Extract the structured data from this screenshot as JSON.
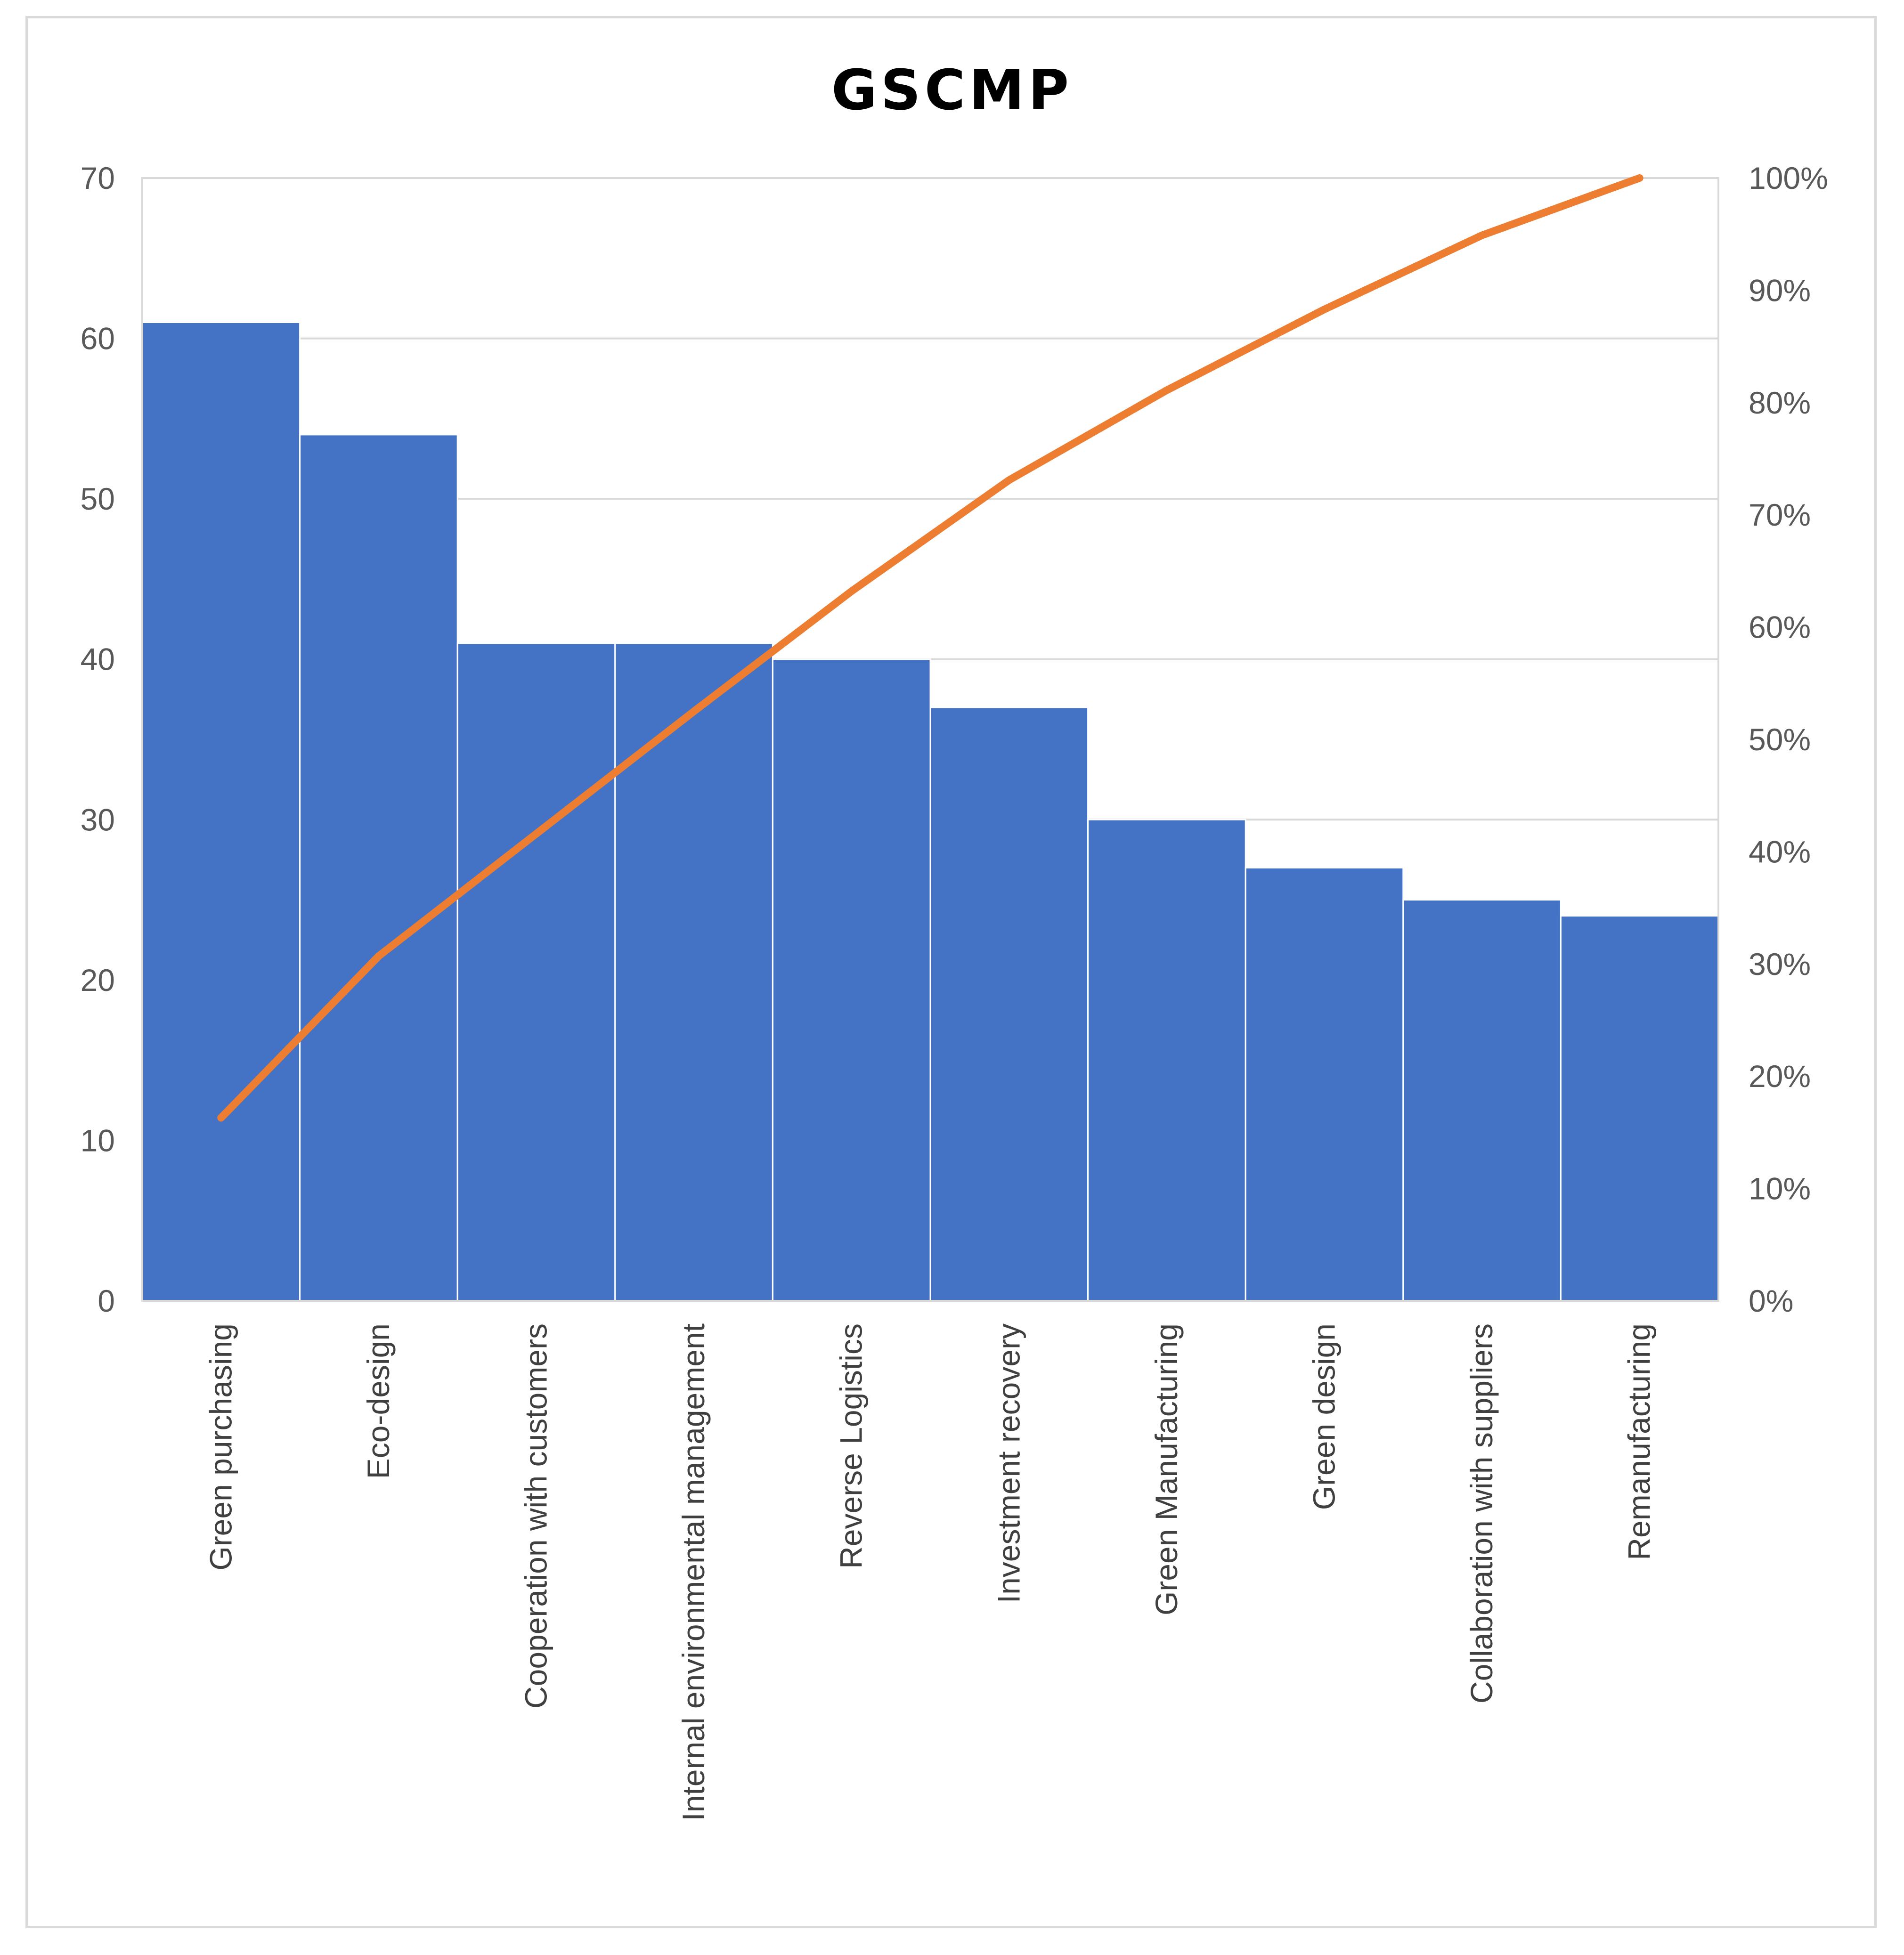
{
  "chart_data": {
    "type": "bar",
    "title": "GSCMP",
    "categories": [
      "Green purchasing",
      "Eco-design",
      "Cooperation with customers",
      "Internal environmental management",
      "Reverse Logistics",
      "Investment recovery",
      "Green Manufacturing",
      "Green design",
      "Collaboration with suppliers",
      "Remanufacturing"
    ],
    "series": [
      {
        "type": "bar",
        "values": [
          61,
          54,
          41,
          41,
          40,
          37,
          30,
          27,
          25,
          24
        ],
        "color": "#4472C4"
      },
      {
        "type": "line",
        "axis": "right",
        "values": [
          16.3,
          30.7,
          41.6,
          52.5,
          63.2,
          73.1,
          81.1,
          88.3,
          94.9,
          100
        ],
        "color": "#ED7D31"
      }
    ],
    "y_left": {
      "min": 0,
      "max": 70,
      "ticks": [
        "0",
        "10",
        "20",
        "30",
        "40",
        "50",
        "60",
        "70"
      ]
    },
    "y_right": {
      "min": 0,
      "max": 100,
      "ticks": [
        "0%",
        "10%",
        "20%",
        "30%",
        "40%",
        "50%",
        "60%",
        "70%",
        "80%",
        "90%",
        "100%"
      ]
    },
    "grid": true,
    "legend": "none"
  }
}
